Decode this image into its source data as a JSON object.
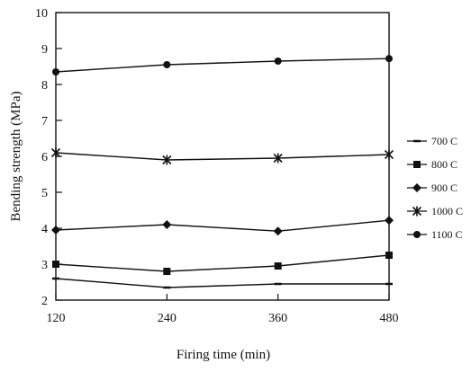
{
  "chart_data": {
    "type": "line",
    "xlabel": "Firing time (min)",
    "ylabel": "Bending strength (MPa)",
    "x": [
      120,
      240,
      360,
      480
    ],
    "xlim": [
      120,
      480
    ],
    "ylim": [
      2,
      10
    ],
    "yticks": [
      2,
      3,
      4,
      5,
      6,
      7,
      8,
      9,
      10
    ],
    "grid": false,
    "legend_position": "right",
    "series": [
      {
        "name": "700 C",
        "marker": "dash",
        "values": [
          2.6,
          2.35,
          2.45,
          2.45
        ]
      },
      {
        "name": "800 C",
        "marker": "square",
        "values": [
          3.0,
          2.8,
          2.95,
          3.25
        ]
      },
      {
        "name": "900 C",
        "marker": "diamond",
        "values": [
          3.95,
          4.1,
          3.92,
          4.22
        ]
      },
      {
        "name": "1000 C",
        "marker": "asterisk",
        "values": [
          6.1,
          5.9,
          5.95,
          6.05
        ]
      },
      {
        "name": "1100 C",
        "marker": "circle",
        "values": [
          8.35,
          8.55,
          8.65,
          8.72
        ]
      }
    ]
  }
}
